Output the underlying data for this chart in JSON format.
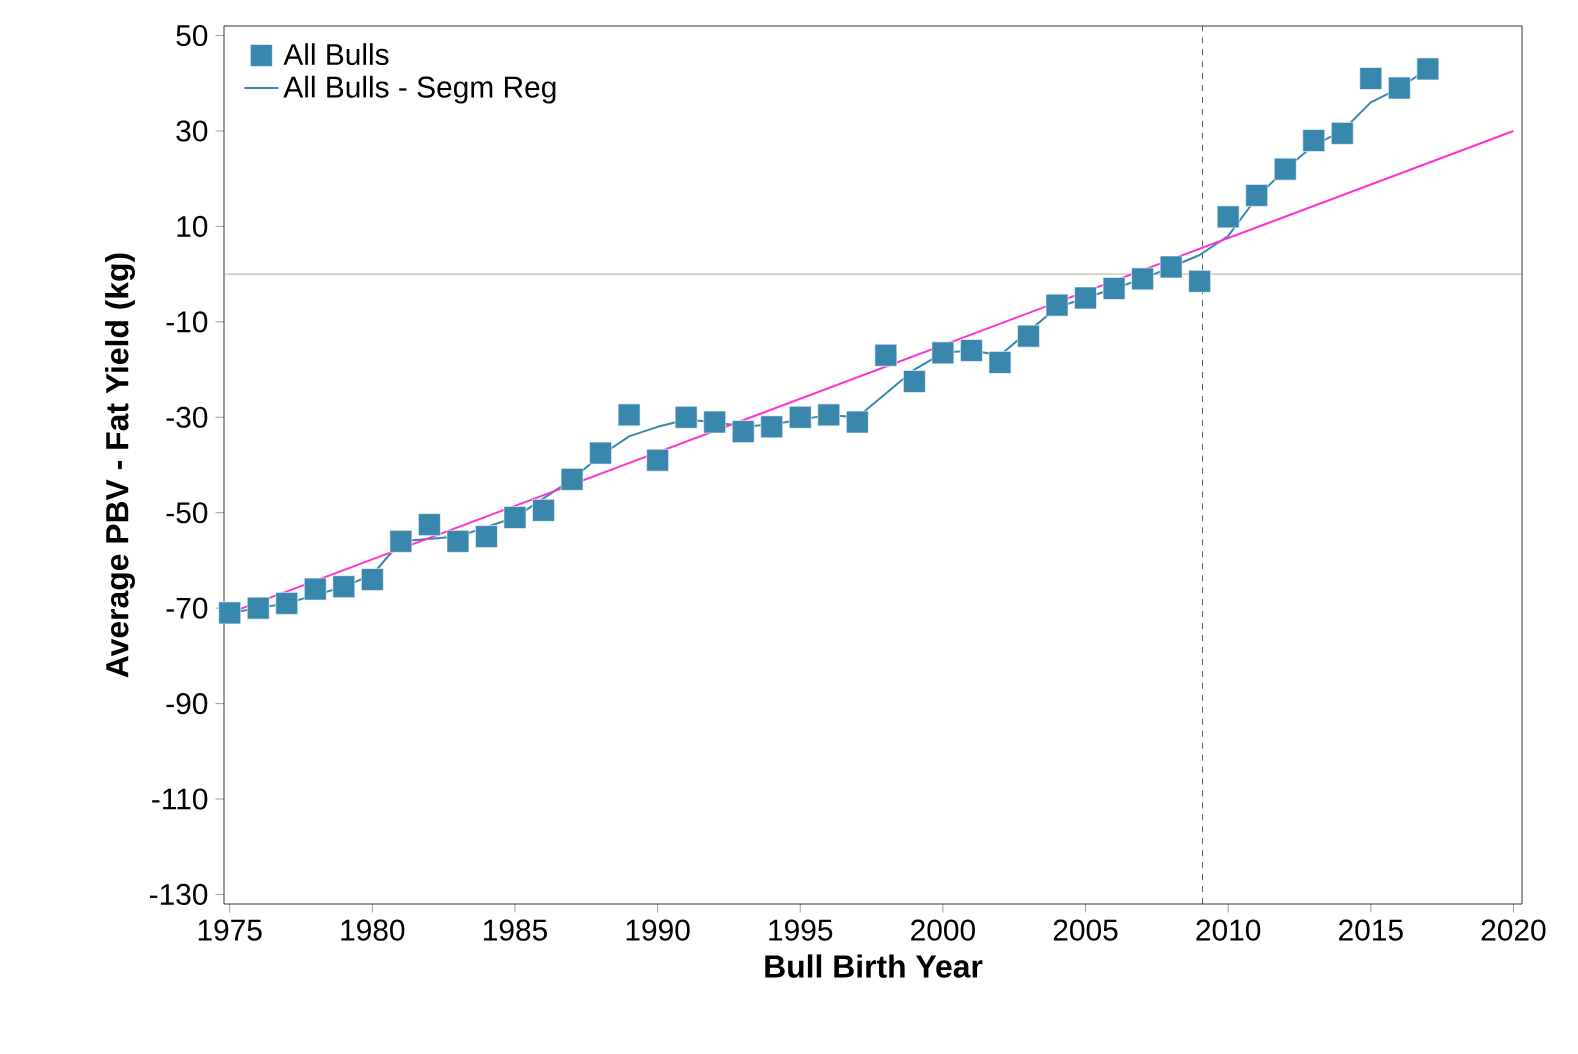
{
  "chart_data": {
    "type": "scatter",
    "xlabel": "Bull Birth Year",
    "ylabel": "Average PBV - Fat Yield (kg)",
    "xlim": [
      1974.8,
      2020.3
    ],
    "ylim": [
      -132,
      52
    ],
    "xticks": [
      1975,
      1980,
      1985,
      1990,
      1995,
      2000,
      2005,
      2010,
      2015,
      2020
    ],
    "yticks": [
      -130,
      -110,
      -90,
      -70,
      -50,
      -30,
      -10,
      10,
      30,
      50
    ],
    "legend": "top left",
    "grid": false,
    "series": [
      {
        "name": "All Bulls",
        "marker": "square",
        "color": "#3a87ad",
        "x": [
          1975,
          1976,
          1977,
          1978,
          1979,
          1980,
          1981,
          1982,
          1983,
          1984,
          1985,
          1986,
          1987,
          1988,
          1989,
          1990,
          1991,
          1992,
          1993,
          1994,
          1995,
          1996,
          1997,
          1998,
          1999,
          2000,
          2001,
          2002,
          2003,
          2004,
          2005,
          2006,
          2007,
          2008,
          2009,
          2010,
          2011,
          2012,
          2013,
          2014,
          2015,
          2016,
          2017
        ],
        "values": [
          -71,
          -70,
          -69,
          -66,
          -65.5,
          -64,
          -56,
          -52.5,
          -56,
          -55,
          -51,
          -49.5,
          -43,
          -37.5,
          -29.5,
          -39,
          -30,
          -31,
          -33,
          -32,
          -30,
          -29.5,
          -31,
          -17,
          -22.5,
          -16.5,
          -16,
          -18.5,
          -13,
          -6.5,
          -5,
          -3,
          -1,
          1.5,
          -1.5,
          12,
          16.5,
          22,
          28,
          29.5,
          41,
          39,
          43
        ]
      },
      {
        "name": "All Bulls - Segm Reg",
        "type": "line",
        "marker": "none",
        "color": "#3a87ad",
        "x": [
          1975,
          1977,
          1979,
          1980,
          1981,
          1983,
          1985,
          1986,
          1987,
          1988,
          1989,
          1990,
          1991,
          1992,
          1993,
          1994,
          1995,
          1996,
          1997,
          1998,
          1999,
          2000,
          2001,
          2002,
          2003,
          2004,
          2005,
          2006,
          2007,
          2008,
          2009,
          2010,
          2011,
          2012,
          2013,
          2014,
          2015,
          2016,
          2017
        ],
        "values": [
          -71,
          -69,
          -65.5,
          -63,
          -56,
          -55,
          -51,
          -47,
          -43,
          -38,
          -34,
          -32,
          -30.5,
          -31,
          -32,
          -31.5,
          -30.5,
          -29.5,
          -30,
          -25,
          -20,
          -16.5,
          -16,
          -17,
          -12,
          -7,
          -5,
          -3,
          -1,
          1.5,
          4,
          8,
          16,
          22,
          27,
          30,
          36,
          39,
          43
        ]
      },
      {
        "type": "line",
        "marker": "none",
        "color": "#ff33cc",
        "x": [
          1975,
          2020
        ],
        "values": [
          -71,
          30
        ]
      }
    ],
    "ref_lines": [
      {
        "axis": "y",
        "value": 0,
        "color": "#999999",
        "line_style": "solid"
      },
      {
        "axis": "x",
        "value": 2009.1,
        "color": "#333333",
        "line_style": "dashed"
      }
    ]
  }
}
